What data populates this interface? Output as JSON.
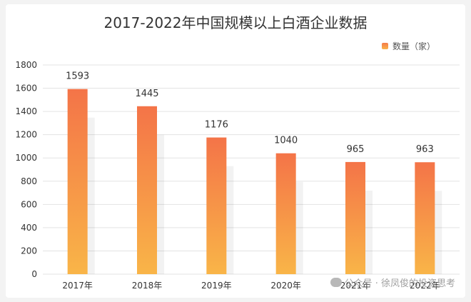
{
  "chart_data": {
    "type": "bar",
    "title": "2017-2022年中国规模以上白酒企业数据",
    "categories": [
      "2017年",
      "2018年",
      "2019年",
      "2020年",
      "2021年",
      "2022年"
    ],
    "series": [
      {
        "name": "数量（家）",
        "values": [
          1593,
          1445,
          1176,
          1040,
          965,
          963
        ]
      }
    ],
    "data_labels": [
      "1593",
      "1445",
      "1176",
      "1040",
      "965",
      "963"
    ],
    "y_ticks": [
      0,
      200,
      400,
      600,
      800,
      1000,
      1200,
      1400,
      1600,
      1800
    ],
    "ylim": [
      0,
      1800
    ],
    "xlabel": "",
    "ylabel": "",
    "grid": true,
    "legend_position": "top-right",
    "colors": {
      "bar_top": "#f47448",
      "bar_bottom": "#f9b548",
      "grid": "#e3e3e3"
    }
  },
  "watermark": {
    "text": "公众号 · 徐凤俊的投资思考"
  }
}
